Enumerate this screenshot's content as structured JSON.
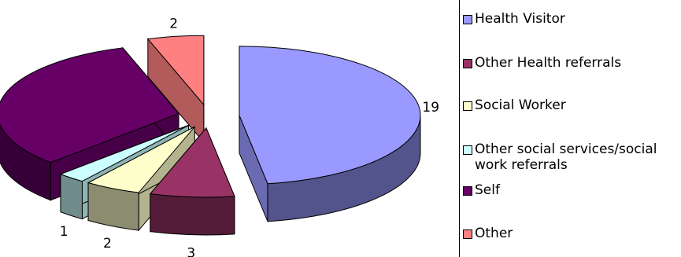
{
  "chart_data": {
    "type": "pie",
    "variant": "3d-exploded",
    "slices": [
      {
        "label": "Health Visitor",
        "value": 19,
        "color": "#9999ff"
      },
      {
        "label": "Other Health referrals",
        "value": 3,
        "color": "#993366"
      },
      {
        "label": "Social Worker",
        "value": 2,
        "color": "#ffffcc"
      },
      {
        "label": "Other social services/social work referrals",
        "value": 1,
        "color": "#ccffff"
      },
      {
        "label": "Self",
        "value": 13,
        "color": "#660066"
      },
      {
        "label": "Other",
        "value": 2,
        "color": "#ff8080"
      }
    ],
    "legend_position": "right"
  }
}
